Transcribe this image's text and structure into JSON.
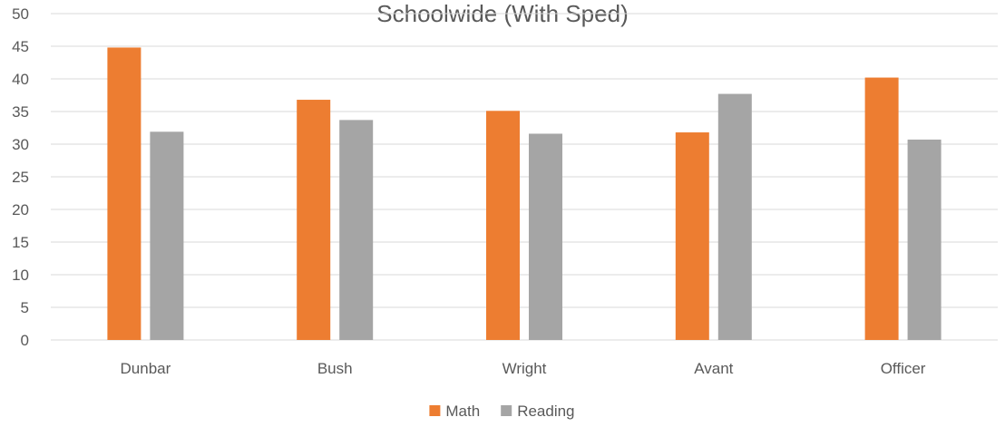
{
  "chart_data": {
    "type": "bar",
    "title": "Schoolwide (With Sped)",
    "categories": [
      "Dunbar",
      "Bush",
      "Wright",
      "Avant",
      "Officer"
    ],
    "series": [
      {
        "name": "Math",
        "color": "#ED7D31",
        "values": [
          44.8,
          36.8,
          35.1,
          31.8,
          40.2
        ]
      },
      {
        "name": "Reading",
        "color": "#A5A5A5",
        "values": [
          31.9,
          33.7,
          31.6,
          37.7,
          30.7
        ]
      }
    ],
    "ylim": [
      0,
      50
    ],
    "yticks": [
      0,
      5,
      10,
      15,
      20,
      25,
      30,
      35,
      40,
      45,
      50
    ],
    "grid": true,
    "legend_position": "bottom",
    "xlabel": "",
    "ylabel": ""
  }
}
